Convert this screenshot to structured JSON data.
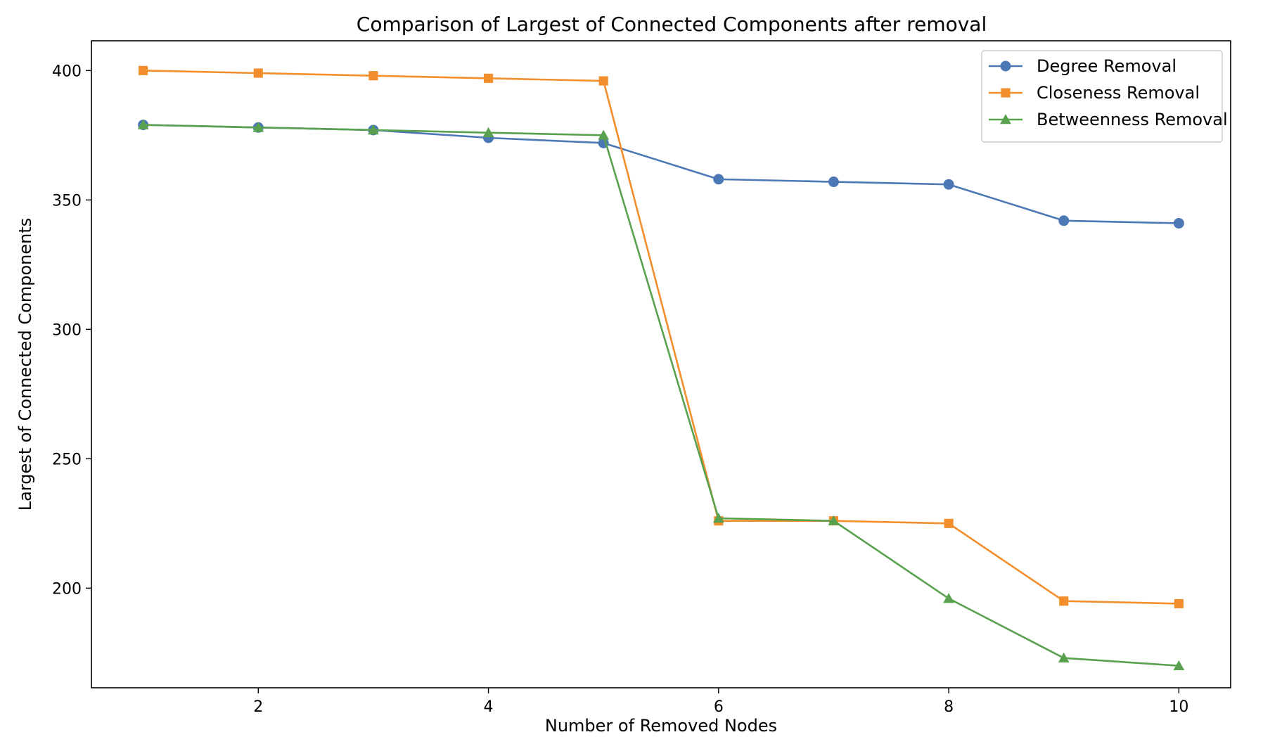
{
  "chart_data": {
    "type": "line",
    "title": "Comparison of Largest of Connected Components after removal",
    "xlabel": "Number of Removed Nodes",
    "ylabel": "Largest of Connected Components",
    "x": [
      1,
      2,
      3,
      4,
      5,
      6,
      7,
      8,
      9,
      10
    ],
    "xlim": [
      0.55,
      10.45
    ],
    "ylim": [
      161.5,
      411.5
    ],
    "xticks": [
      2,
      4,
      6,
      8,
      10
    ],
    "yticks": [
      200,
      250,
      300,
      350,
      400
    ],
    "grid": false,
    "legend_position": "top-right",
    "series": [
      {
        "name": "Degree Removal",
        "color": "#4c78b5",
        "marker": "circle",
        "values": [
          379,
          378,
          377,
          374,
          372,
          358,
          357,
          356,
          342,
          341
        ]
      },
      {
        "name": "Closeness Removal",
        "color": "#f28e2b",
        "marker": "square",
        "values": [
          400,
          399,
          398,
          397,
          396,
          226,
          226,
          225,
          195,
          194
        ]
      },
      {
        "name": "Betweenness Removal",
        "color": "#59a14f",
        "marker": "triangle",
        "values": [
          379,
          378,
          377,
          376,
          375,
          227,
          226,
          196,
          173,
          170
        ]
      }
    ]
  }
}
